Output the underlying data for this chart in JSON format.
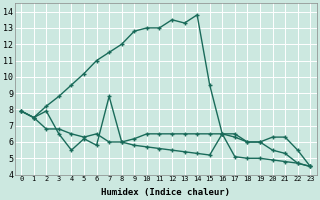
{
  "xlabel": "Humidex (Indice chaleur)",
  "xlim": [
    -0.5,
    23.5
  ],
  "ylim": [
    4,
    14.5
  ],
  "yticks": [
    4,
    5,
    6,
    7,
    8,
    9,
    10,
    11,
    12,
    13,
    14
  ],
  "xticks": [
    0,
    1,
    2,
    3,
    4,
    5,
    6,
    7,
    8,
    9,
    10,
    11,
    12,
    13,
    14,
    15,
    16,
    17,
    18,
    19,
    20,
    21,
    22,
    23
  ],
  "bg_color": "#cce8e0",
  "grid_color": "#ffffff",
  "line_color": "#1a6b5a",
  "line1_x": [
    0,
    1,
    2,
    3,
    4,
    5,
    6,
    7,
    8,
    9,
    10,
    11,
    12,
    13,
    14,
    15,
    16,
    17,
    18,
    19,
    20,
    21,
    22,
    23
  ],
  "line1_y": [
    7.9,
    7.5,
    8.2,
    8.8,
    9.5,
    10.2,
    11.0,
    11.5,
    12.0,
    12.8,
    13.0,
    13.0,
    13.5,
    13.3,
    13.8,
    9.5,
    6.5,
    6.5,
    6.0,
    6.0,
    5.5,
    5.3,
    4.7,
    4.5
  ],
  "line2_x": [
    0,
    1,
    2,
    3,
    4,
    5,
    6,
    7,
    8,
    9,
    10,
    11,
    12,
    13,
    14,
    15,
    16,
    17,
    18,
    19,
    20,
    21,
    22,
    23
  ],
  "line2_y": [
    7.9,
    7.5,
    7.9,
    6.5,
    5.5,
    6.2,
    5.8,
    8.8,
    6.0,
    6.2,
    6.5,
    6.5,
    6.5,
    6.5,
    6.5,
    6.5,
    6.5,
    6.3,
    6.0,
    6.0,
    6.3,
    6.3,
    5.5,
    4.5
  ],
  "line3_x": [
    0,
    1,
    2,
    3,
    4,
    5,
    6,
    7,
    8,
    9,
    10,
    11,
    12,
    13,
    14,
    15,
    16,
    17,
    18,
    19,
    20,
    21,
    22,
    23
  ],
  "line3_y": [
    7.9,
    7.5,
    6.8,
    6.8,
    6.5,
    6.3,
    6.5,
    6.0,
    6.0,
    5.8,
    5.7,
    5.6,
    5.5,
    5.4,
    5.3,
    5.2,
    6.5,
    5.1,
    5.0,
    5.0,
    4.9,
    4.8,
    4.7,
    4.5
  ]
}
